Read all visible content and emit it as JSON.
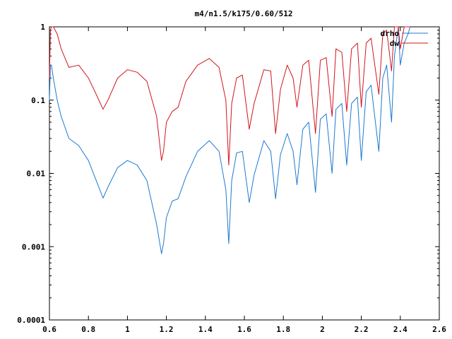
{
  "chart_data": {
    "type": "line",
    "title": "m4/n1.5/k175/0.60/512",
    "xlabel": "",
    "ylabel": "",
    "xlim": [
      0.6,
      2.6
    ],
    "ylim": [
      0.0001,
      1
    ],
    "y_scale": "log",
    "grid": false,
    "legend_position": "top-right",
    "x_ticks": [
      0.6,
      0.8,
      1,
      1.2,
      1.4,
      1.6,
      1.8,
      2,
      2.2,
      2.4,
      2.6
    ],
    "x_tick_labels": [
      "0.6",
      "0.8",
      "1",
      "1.2",
      "1.4",
      "1.6",
      "1.8",
      "2",
      "2.2",
      "2.4",
      "2.6"
    ],
    "y_ticks": [
      0.0001,
      0.001,
      0.01,
      0.1,
      1
    ],
    "y_tick_labels": [
      "0.0001",
      "0.001",
      "0.01",
      "0.1",
      "1"
    ],
    "series": [
      {
        "name": "drho",
        "color": "#1e78d2",
        "x": [
          0.6,
          0.605,
          0.61,
          0.62,
          0.64,
          0.66,
          0.7,
          0.75,
          0.8,
          0.84,
          0.875,
          0.9,
          0.95,
          1.0,
          1.05,
          1.1,
          1.15,
          1.175,
          1.185,
          1.2,
          1.23,
          1.26,
          1.3,
          1.36,
          1.42,
          1.47,
          1.505,
          1.52,
          1.535,
          1.56,
          1.59,
          1.625,
          1.65,
          1.7,
          1.735,
          1.76,
          1.785,
          1.82,
          1.85,
          1.87,
          1.9,
          1.93,
          1.965,
          1.99,
          2.02,
          2.05,
          2.07,
          2.1,
          2.125,
          2.15,
          2.18,
          2.2,
          2.225,
          2.25,
          2.29,
          2.31,
          2.33,
          2.355,
          2.37,
          2.39,
          2.4,
          2.42,
          2.44,
          2.45
        ],
        "y": [
          0.1,
          0.3,
          0.3,
          0.2,
          0.1,
          0.06,
          0.03,
          0.024,
          0.015,
          0.008,
          0.0046,
          0.0065,
          0.012,
          0.015,
          0.013,
          0.008,
          0.002,
          0.0008,
          0.0011,
          0.0025,
          0.0042,
          0.0045,
          0.009,
          0.02,
          0.028,
          0.02,
          0.006,
          0.0011,
          0.008,
          0.019,
          0.02,
          0.004,
          0.0095,
          0.028,
          0.02,
          0.0045,
          0.018,
          0.035,
          0.02,
          0.007,
          0.04,
          0.05,
          0.0055,
          0.055,
          0.065,
          0.01,
          0.075,
          0.09,
          0.013,
          0.09,
          0.11,
          0.015,
          0.13,
          0.16,
          0.02,
          0.2,
          0.3,
          0.05,
          0.4,
          1.0,
          0.3,
          0.6,
          0.8,
          1.0
        ]
      },
      {
        "name": "dw",
        "color": "#d2141e",
        "x": [
          0.6,
          0.605,
          0.61,
          0.62,
          0.64,
          0.66,
          0.7,
          0.75,
          0.8,
          0.84,
          0.875,
          0.9,
          0.95,
          1.0,
          1.05,
          1.1,
          1.15,
          1.175,
          1.185,
          1.2,
          1.23,
          1.26,
          1.3,
          1.36,
          1.42,
          1.47,
          1.505,
          1.52,
          1.535,
          1.56,
          1.59,
          1.625,
          1.65,
          1.7,
          1.735,
          1.76,
          1.785,
          1.82,
          1.85,
          1.87,
          1.9,
          1.93,
          1.965,
          1.99,
          2.02,
          2.05,
          2.07,
          2.1,
          2.125,
          2.15,
          2.18,
          2.2,
          2.225,
          2.25,
          2.29,
          2.31,
          2.33,
          2.355,
          2.37,
          2.39,
          2.4,
          2.42,
          2.44,
          2.45
        ],
        "y": [
          0.2,
          0.9,
          1.0,
          1.0,
          0.8,
          0.5,
          0.28,
          0.3,
          0.2,
          0.12,
          0.075,
          0.1,
          0.2,
          0.26,
          0.24,
          0.18,
          0.06,
          0.015,
          0.02,
          0.05,
          0.07,
          0.08,
          0.18,
          0.3,
          0.37,
          0.28,
          0.1,
          0.013,
          0.09,
          0.2,
          0.22,
          0.04,
          0.09,
          0.26,
          0.25,
          0.035,
          0.14,
          0.3,
          0.2,
          0.08,
          0.3,
          0.35,
          0.035,
          0.35,
          0.38,
          0.06,
          0.5,
          0.45,
          0.07,
          0.5,
          0.6,
          0.08,
          0.6,
          0.7,
          0.12,
          0.8,
          0.9,
          0.25,
          1.0,
          1.0,
          0.5,
          1.0,
          1.0,
          1.0
        ]
      }
    ]
  }
}
